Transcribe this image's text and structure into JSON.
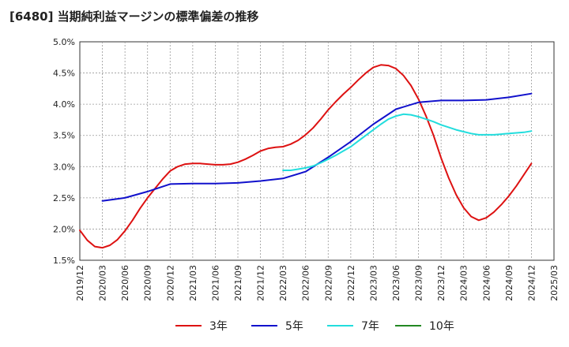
{
  "title": "[6480]  当期純利益マージンの標準偏差の推移",
  "chart_data": {
    "type": "line",
    "title": "[6480]  当期純利益マージンの標準偏差の推移",
    "xlabel": "",
    "ylabel": "",
    "ylim": [
      1.5,
      5.0
    ],
    "yticks": [
      "1.5%",
      "2.0%",
      "2.5%",
      "3.0%",
      "3.5%",
      "4.0%",
      "4.5%",
      "5.0%"
    ],
    "xticks": [
      "2019/12",
      "2020/03",
      "2020/06",
      "2020/09",
      "2020/12",
      "2021/03",
      "2021/06",
      "2021/09",
      "2021/12",
      "2022/03",
      "2022/06",
      "2022/09",
      "2022/12",
      "2023/03",
      "2023/06",
      "2023/09",
      "2023/12",
      "2024/03",
      "2024/06",
      "2024/09",
      "2024/12",
      "2025/03"
    ],
    "grid": true,
    "legend_position": "bottom",
    "series": [
      {
        "name": "3年",
        "color": "#dd1111",
        "x": [
          "2019/12",
          "2020/01",
          "2020/02",
          "2020/03",
          "2020/04",
          "2020/05",
          "2020/06",
          "2020/07",
          "2020/08",
          "2020/09",
          "2020/10",
          "2020/11",
          "2020/12",
          "2021/01",
          "2021/02",
          "2021/03",
          "2021/04",
          "2021/05",
          "2021/06",
          "2021/07",
          "2021/08",
          "2021/09",
          "2021/10",
          "2021/11",
          "2021/12",
          "2022/01",
          "2022/02",
          "2022/03",
          "2022/04",
          "2022/05",
          "2022/06",
          "2022/07",
          "2022/08",
          "2022/09",
          "2022/10",
          "2022/11",
          "2022/12",
          "2023/01",
          "2023/02",
          "2023/03",
          "2023/04",
          "2023/05",
          "2023/06",
          "2023/07",
          "2023/08",
          "2023/09",
          "2023/10",
          "2023/11",
          "2023/12",
          "2024/01",
          "2024/02",
          "2024/03",
          "2024/04",
          "2024/05",
          "2024/06",
          "2024/07",
          "2024/08",
          "2024/09",
          "2024/10",
          "2024/11",
          "2024/12"
        ],
        "values": [
          1.98,
          1.82,
          1.72,
          1.7,
          1.74,
          1.83,
          1.97,
          2.14,
          2.33,
          2.5,
          2.65,
          2.8,
          2.93,
          3.0,
          3.04,
          3.05,
          3.05,
          3.04,
          3.03,
          3.03,
          3.04,
          3.07,
          3.12,
          3.18,
          3.25,
          3.29,
          3.31,
          3.32,
          3.36,
          3.42,
          3.51,
          3.62,
          3.76,
          3.91,
          4.04,
          4.16,
          4.27,
          4.39,
          4.5,
          4.59,
          4.63,
          4.62,
          4.57,
          4.46,
          4.3,
          4.08,
          3.81,
          3.5,
          3.14,
          2.82,
          2.55,
          2.34,
          2.2,
          2.14,
          2.18,
          2.27,
          2.39,
          2.53,
          2.69,
          2.87,
          3.05
        ]
      },
      {
        "name": "5年",
        "color": "#1111cc",
        "x": [
          "2020/03",
          "2020/06",
          "2020/09",
          "2020/12",
          "2021/03",
          "2021/06",
          "2021/09",
          "2021/12",
          "2022/03",
          "2022/06",
          "2022/09",
          "2022/12",
          "2023/03",
          "2023/06",
          "2023/09",
          "2023/12",
          "2024/03",
          "2024/06",
          "2024/09",
          "2024/12"
        ],
        "values": [
          2.45,
          2.5,
          2.6,
          2.72,
          2.73,
          2.73,
          2.74,
          2.77,
          2.81,
          2.92,
          3.15,
          3.4,
          3.68,
          3.92,
          4.03,
          4.06,
          4.06,
          4.07,
          4.11,
          4.17
        ]
      },
      {
        "name": "7年",
        "color": "#22dddd",
        "x": [
          "2022/03",
          "2022/04",
          "2022/05",
          "2022/06",
          "2022/07",
          "2022/08",
          "2022/09",
          "2022/10",
          "2022/11",
          "2022/12",
          "2023/01",
          "2023/02",
          "2023/03",
          "2023/04",
          "2023/05",
          "2023/06",
          "2023/07",
          "2023/08",
          "2023/09",
          "2023/10",
          "2023/11",
          "2023/12",
          "2024/01",
          "2024/02",
          "2024/03",
          "2024/04",
          "2024/05",
          "2024/06",
          "2024/07",
          "2024/08",
          "2024/09",
          "2024/10",
          "2024/11",
          "2024/12"
        ],
        "values": [
          2.94,
          2.94,
          2.96,
          2.98,
          3.01,
          3.06,
          3.12,
          3.18,
          3.25,
          3.32,
          3.41,
          3.5,
          3.59,
          3.68,
          3.76,
          3.81,
          3.84,
          3.83,
          3.8,
          3.76,
          3.72,
          3.67,
          3.63,
          3.59,
          3.56,
          3.53,
          3.51,
          3.51,
          3.51,
          3.52,
          3.53,
          3.54,
          3.55,
          3.57
        ]
      },
      {
        "name": "10年",
        "color": "#228822",
        "x": [],
        "values": []
      }
    ]
  }
}
